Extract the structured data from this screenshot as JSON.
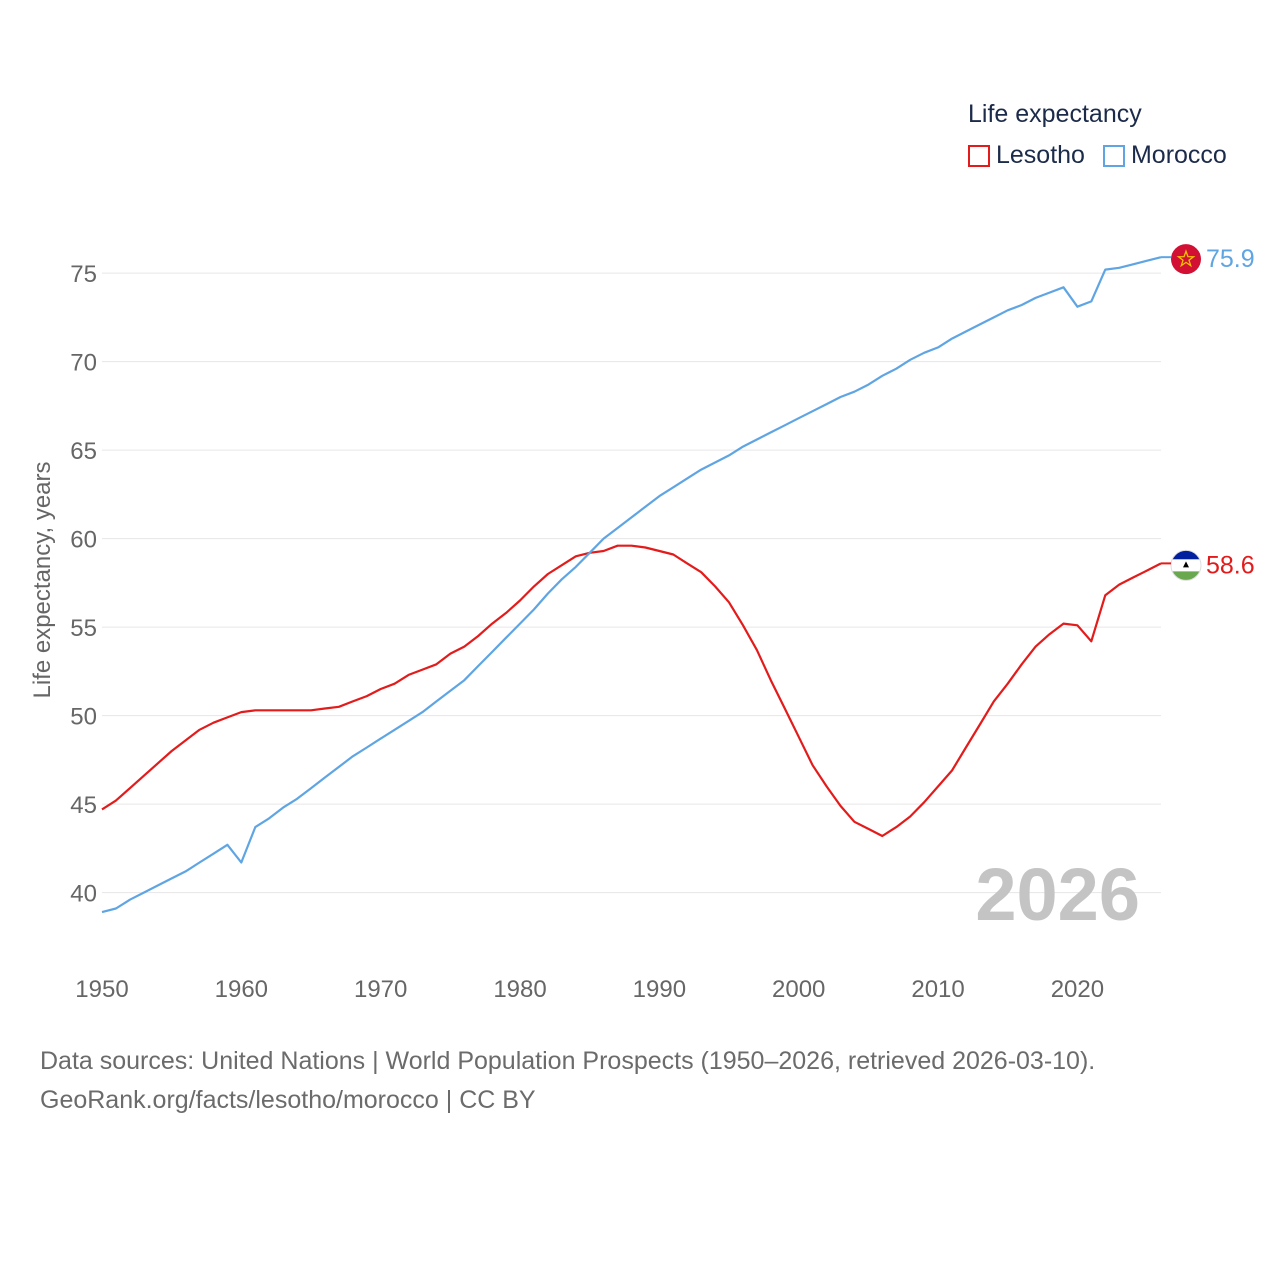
{
  "legend": {
    "title": "Life expectancy",
    "items": [
      {
        "label": "Lesotho",
        "color": "#e31b1b"
      },
      {
        "label": "Morocco",
        "color": "#5fa5e3"
      }
    ]
  },
  "footer": {
    "line1": "Data sources: United Nations | World Population Prospects (1950–2026, retrieved 2026-03-10).",
    "line2": "GeoRank.org/facts/lesotho/morocco | CC BY"
  },
  "chart_data": {
    "type": "line",
    "title": "Life expectancy",
    "xlabel": "",
    "ylabel": "Life expectancy, years",
    "xlim": [
      1950,
      2026
    ],
    "ylim": [
      38,
      78
    ],
    "yticks": [
      40,
      45,
      50,
      55,
      60,
      65,
      70,
      75
    ],
    "xticks": [
      1950,
      1960,
      1970,
      1980,
      1990,
      2000,
      2010,
      2020
    ],
    "year_label": "2026",
    "grid": true,
    "series": [
      {
        "name": "Lesotho",
        "color": "#e31b1b",
        "end_label": "58.6",
        "flag": "lesotho",
        "x": [
          1950,
          1951,
          1952,
          1953,
          1954,
          1955,
          1956,
          1957,
          1958,
          1959,
          1960,
          1961,
          1962,
          1963,
          1964,
          1965,
          1966,
          1967,
          1968,
          1969,
          1970,
          1971,
          1972,
          1973,
          1974,
          1975,
          1976,
          1977,
          1978,
          1979,
          1980,
          1981,
          1982,
          1983,
          1984,
          1985,
          1986,
          1987,
          1988,
          1989,
          1990,
          1991,
          1992,
          1993,
          1994,
          1995,
          1996,
          1997,
          1998,
          1999,
          2000,
          2001,
          2002,
          2003,
          2004,
          2005,
          2006,
          2007,
          2008,
          2009,
          2010,
          2011,
          2012,
          2013,
          2014,
          2015,
          2016,
          2017,
          2018,
          2019,
          2020,
          2021,
          2022,
          2023,
          2024,
          2025,
          2026
        ],
        "y": [
          44.7,
          45.2,
          45.9,
          46.6,
          47.3,
          48.0,
          48.6,
          49.2,
          49.6,
          49.9,
          50.2,
          50.3,
          50.3,
          50.3,
          50.3,
          50.3,
          50.4,
          50.5,
          50.8,
          51.1,
          51.5,
          51.8,
          52.3,
          52.6,
          52.9,
          53.5,
          53.9,
          54.5,
          55.2,
          55.8,
          56.5,
          57.3,
          58.0,
          58.5,
          59.0,
          59.2,
          59.3,
          59.6,
          59.6,
          59.5,
          59.3,
          59.1,
          58.6,
          58.1,
          57.3,
          56.4,
          55.1,
          53.7,
          52.0,
          50.4,
          48.8,
          47.2,
          46.0,
          44.9,
          44.0,
          43.6,
          43.2,
          43.7,
          44.3,
          45.1,
          46.0,
          46.9,
          48.2,
          49.5,
          50.8,
          51.8,
          52.9,
          53.9,
          54.6,
          55.2,
          55.1,
          54.2,
          56.8,
          57.4,
          57.8,
          58.2,
          58.6
        ]
      },
      {
        "name": "Morocco",
        "color": "#5fa5e3",
        "end_label": "75.9",
        "flag": "morocco",
        "x": [
          1950,
          1951,
          1952,
          1953,
          1954,
          1955,
          1956,
          1957,
          1958,
          1959,
          1960,
          1961,
          1962,
          1963,
          1964,
          1965,
          1966,
          1967,
          1968,
          1969,
          1970,
          1971,
          1972,
          1973,
          1974,
          1975,
          1976,
          1977,
          1978,
          1979,
          1980,
          1981,
          1982,
          1983,
          1984,
          1985,
          1986,
          1987,
          1988,
          1989,
          1990,
          1991,
          1992,
          1993,
          1994,
          1995,
          1996,
          1997,
          1998,
          1999,
          2000,
          2001,
          2002,
          2003,
          2004,
          2005,
          2006,
          2007,
          2008,
          2009,
          2010,
          2011,
          2012,
          2013,
          2014,
          2015,
          2016,
          2017,
          2018,
          2019,
          2020,
          2021,
          2022,
          2023,
          2024,
          2025,
          2026
        ],
        "y": [
          38.9,
          39.1,
          39.6,
          40.0,
          40.4,
          40.8,
          41.2,
          41.7,
          42.2,
          42.7,
          41.7,
          43.7,
          44.2,
          44.8,
          45.3,
          45.9,
          46.5,
          47.1,
          47.7,
          48.2,
          48.7,
          49.2,
          49.7,
          50.2,
          50.8,
          51.4,
          52.0,
          52.8,
          53.6,
          54.4,
          55.2,
          56.0,
          56.9,
          57.7,
          58.4,
          59.2,
          60.0,
          60.6,
          61.2,
          61.8,
          62.4,
          62.9,
          63.4,
          63.9,
          64.3,
          64.7,
          65.2,
          65.6,
          66.0,
          66.4,
          66.8,
          67.2,
          67.6,
          68.0,
          68.3,
          68.7,
          69.2,
          69.6,
          70.1,
          70.5,
          70.8,
          71.3,
          71.7,
          72.1,
          72.5,
          72.9,
          73.2,
          73.6,
          73.9,
          74.2,
          73.1,
          73.4,
          75.2,
          75.3,
          75.5,
          75.7,
          75.9
        ]
      }
    ]
  }
}
